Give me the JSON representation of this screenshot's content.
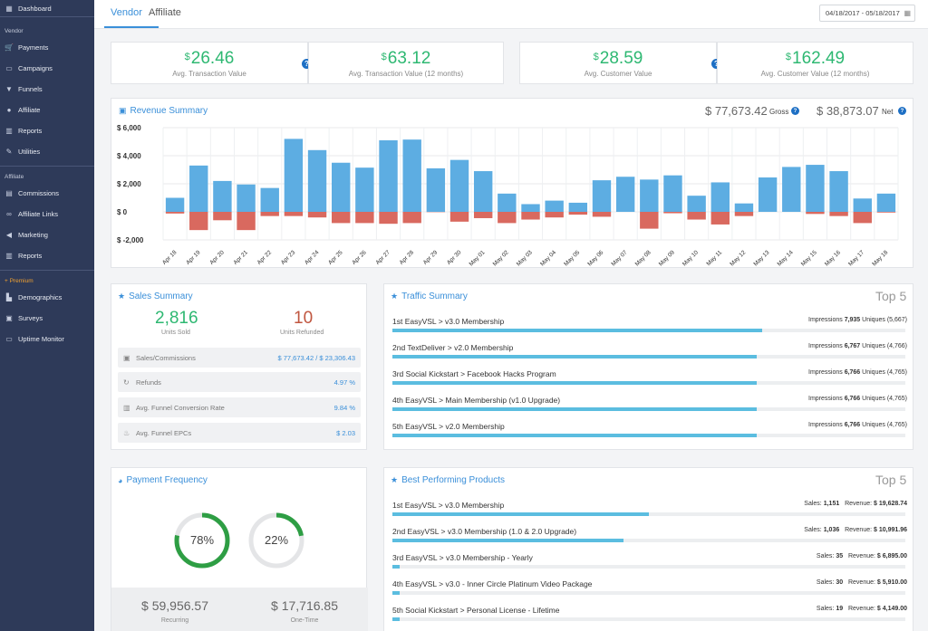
{
  "sidebar": {
    "dashboard": "Dashboard",
    "vendor_section": "Vendor",
    "vendor_items": [
      {
        "label": "Payments",
        "icon": "cart-icon"
      },
      {
        "label": "Campaigns",
        "icon": "campaigns-icon"
      },
      {
        "label": "Funnels",
        "icon": "funnel-icon"
      },
      {
        "label": "Affiliate",
        "icon": "user-icon"
      },
      {
        "label": "Reports",
        "icon": "reports-icon"
      },
      {
        "label": "Utilities",
        "icon": "wrench-icon"
      }
    ],
    "affiliate_section": "Affiliate",
    "affiliate_items": [
      {
        "label": "Commissions",
        "icon": "commissions-icon"
      },
      {
        "label": "Affiliate Links",
        "icon": "link-icon"
      },
      {
        "label": "Marketing",
        "icon": "megaphone-icon"
      },
      {
        "label": "Reports",
        "icon": "reports-icon"
      }
    ],
    "premium_section": "+ Premium",
    "premium_items": [
      {
        "label": "Demographics",
        "icon": "demographics-icon"
      },
      {
        "label": "Surveys",
        "icon": "surveys-icon"
      },
      {
        "label": "Uptime Monitor",
        "icon": "monitor-icon"
      }
    ]
  },
  "tabs": {
    "vendor": "Vendor",
    "affiliate": "Affiliate"
  },
  "date_range": "04/18/2017 - 05/18/2017",
  "stats": [
    {
      "currency": "$",
      "value": "26.46",
      "label": "Avg. Transaction Value"
    },
    {
      "currency": "$",
      "value": "63.12",
      "label": "Avg. Transaction Value (12 months)"
    },
    {
      "currency": "$",
      "value": "28.59",
      "label": "Avg. Customer Value"
    },
    {
      "currency": "$",
      "value": "162.49",
      "label": "Avg. Customer Value (12 months)"
    }
  ],
  "revenue": {
    "title": "Revenue Summary",
    "gross_value": "$ 77,673.42",
    "gross_label": "Gross",
    "net_value": "$ 38,873.07",
    "net_label": "Net"
  },
  "chart_data": {
    "type": "bar",
    "title": "Revenue Summary",
    "y_tick_labels": [
      "$ 6,000",
      "$ 4,000",
      "$ 2,000",
      "$ 0",
      "$ -2,000"
    ],
    "ylim": [
      -2000,
      6000
    ],
    "grid": true,
    "categories": [
      "Apr 18",
      "Apr 19",
      "Apr 20",
      "Apr 21",
      "Apr 22",
      "Apr 23",
      "Apr 24",
      "Apr 25",
      "Apr 26",
      "Apr 27",
      "Apr 28",
      "Apr 29",
      "Apr 30",
      "May 01",
      "May 02",
      "May 03",
      "May 04",
      "May 05",
      "May 06",
      "May 07",
      "May 08",
      "May 09",
      "May 10",
      "May 11",
      "May 12",
      "May 13",
      "May 14",
      "May 15",
      "May 16",
      "May 17",
      "May 18"
    ],
    "series": [
      {
        "color": "#5dade2",
        "values": [
          1000,
          3300,
          2200,
          1950,
          1700,
          5200,
          4400,
          3500,
          3150,
          5100,
          5150,
          3100,
          3700,
          2900,
          1300,
          550,
          800,
          650,
          2250,
          2500,
          2300,
          2600,
          1150,
          2100,
          600,
          2450,
          3200,
          3350,
          2900,
          950,
          1300
        ]
      },
      {
        "color": "#d9695f",
        "values": [
          -120,
          -1300,
          -600,
          -1300,
          -300,
          -300,
          -400,
          -800,
          -800,
          -850,
          -800,
          -20,
          -700,
          -450,
          -800,
          -550,
          -400,
          -200,
          -350,
          0,
          -1200,
          -100,
          -550,
          -900,
          -300,
          0,
          0,
          -150,
          -300,
          -800,
          -50
        ]
      }
    ]
  },
  "sales_summary": {
    "title": "Sales Summary",
    "units_sold": "2,816",
    "units_sold_label": "Units Sold",
    "units_refunded": "10",
    "units_refunded_label": "Units Refunded",
    "rows": [
      {
        "label": "Sales/Commissions",
        "value": "$ 77,673.42 / $ 23,306.43",
        "icon": "money-icon"
      },
      {
        "label": "Refunds",
        "value": "4.97 %",
        "icon": "refresh-icon"
      },
      {
        "label": "Avg. Funnel Conversion Rate",
        "value": "9.84 %",
        "icon": "chart-icon"
      },
      {
        "label": "Avg. Funnel EPCs",
        "value": "$ 2.03",
        "icon": "flame-icon"
      }
    ]
  },
  "traffic_summary": {
    "title": "Traffic Summary",
    "top": "Top 5",
    "rows": [
      {
        "name": "1st  EasyVSL > v3.0 Membership",
        "impressions": "7,935",
        "uniques": "(5,667)",
        "fill": 0.72
      },
      {
        "name": "2nd  TextDeliver > v2.0 Membership",
        "impressions": "6,767",
        "uniques": "(4,766)",
        "fill": 0.71
      },
      {
        "name": "3rd  Social Kickstart > Facebook Hacks Program",
        "impressions": "6,766",
        "uniques": "(4,765)",
        "fill": 0.71
      },
      {
        "name": "4th  EasyVSL > Main Membership (v1.0 Upgrade)",
        "impressions": "6,766",
        "uniques": "(4,765)",
        "fill": 0.71
      },
      {
        "name": "5th  EasyVSL > v2.0 Membership",
        "impressions": "6,766",
        "uniques": "(4,765)",
        "fill": 0.71
      }
    ],
    "impressions_label": "Impressions",
    "uniques_label": "Uniques"
  },
  "payment_frequency": {
    "title": "Payment Frequency",
    "recurring_pct": 78,
    "onetime_pct": 22,
    "recurring_label_pct": "78%",
    "onetime_label_pct": "22%",
    "recurring_value": "$ 59,956.57",
    "recurring_label": "Recurring",
    "onetime_value": "$ 17,716.85",
    "onetime_label": "One-Time"
  },
  "best_products": {
    "title": "Best Performing Products",
    "top": "Top 5",
    "sales_label": "Sales:",
    "revenue_label": "Revenue:",
    "rows": [
      {
        "name": "1st  EasyVSL > v3.0 Membership",
        "sales": "1,151",
        "revenue": "$ 19,628.74",
        "fill": 0.5
      },
      {
        "name": "2nd  EasyVSL > v3.0 Membership (1.0 & 2.0 Upgrade)",
        "sales": "1,036",
        "revenue": "$ 10,991.96",
        "fill": 0.45
      },
      {
        "name": "3rd  EasyVSL > v3.0 Membership - Yearly",
        "sales": "35",
        "revenue": "$ 6,895.00",
        "fill": 0.015
      },
      {
        "name": "4th  EasyVSL > v3.0 - Inner Circle Platinum Video Package",
        "sales": "30",
        "revenue": "$ 5,910.00",
        "fill": 0.013
      },
      {
        "name": "5th  Social Kickstart > Personal License - Lifetime",
        "sales": "19",
        "revenue": "$ 4,149.00",
        "fill": 0.01
      }
    ]
  },
  "colors": {
    "accent": "#3a8fd9",
    "green": "#2eb872",
    "red": "#d9695f",
    "bar_blue": "#5dade2",
    "sidebar": "#2e3a59"
  }
}
